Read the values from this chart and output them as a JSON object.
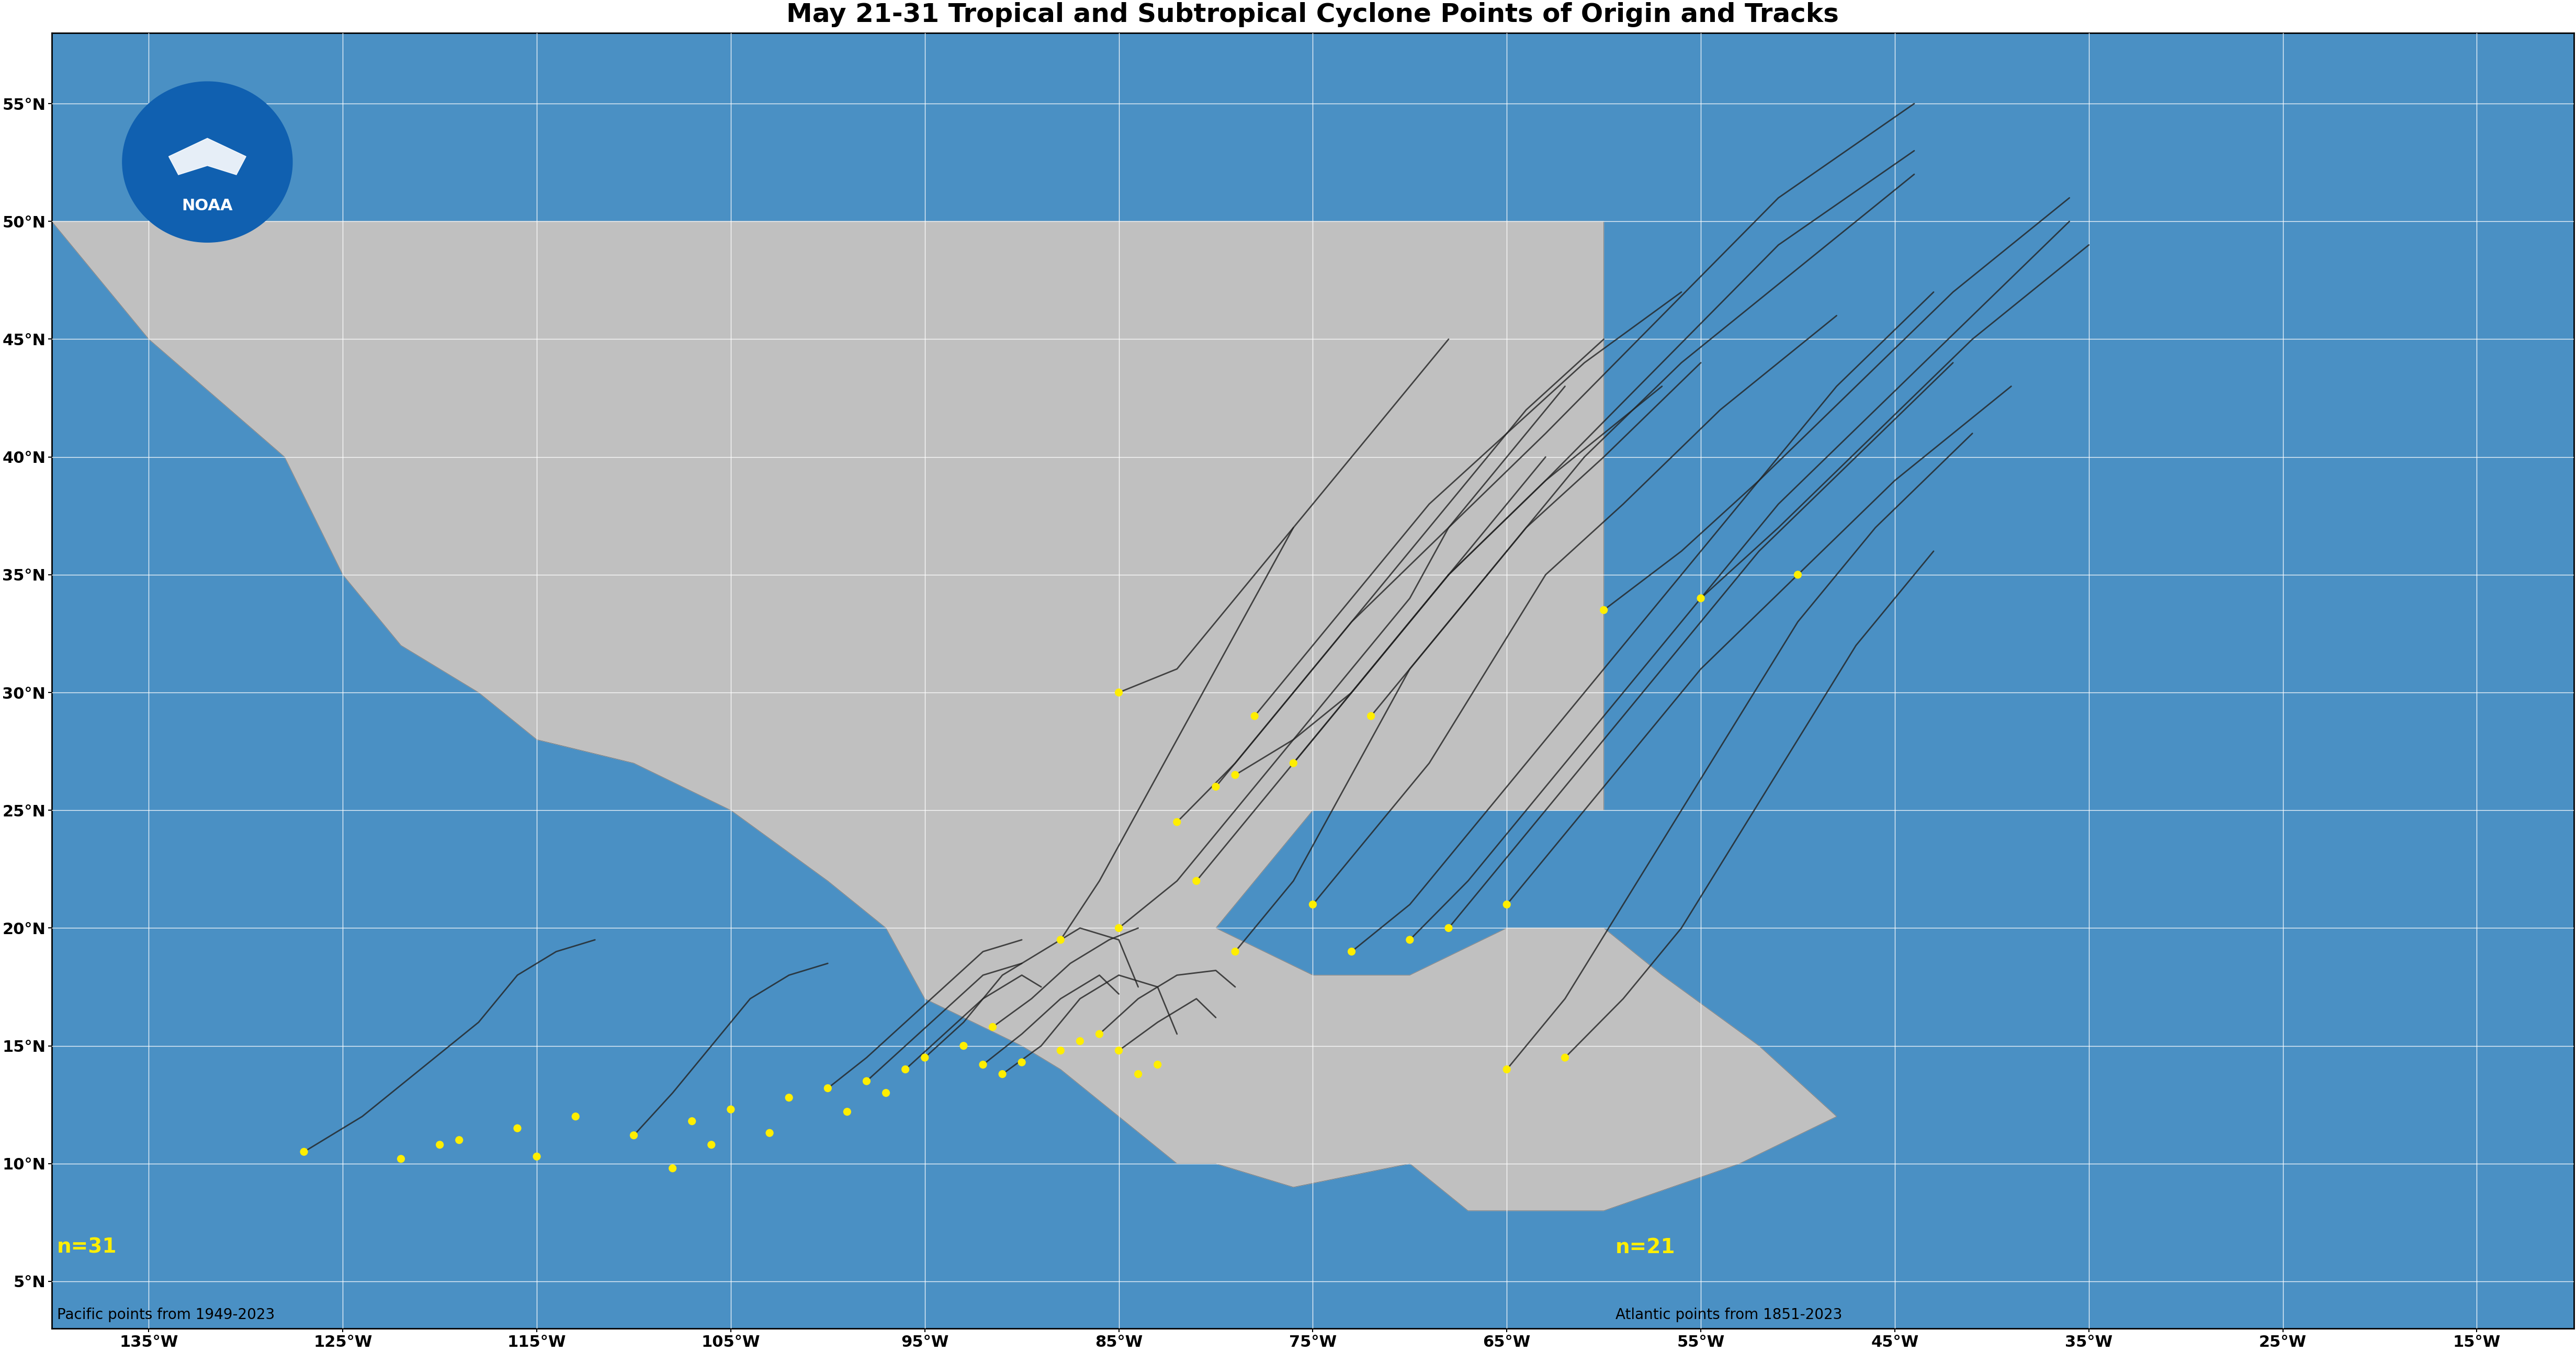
{
  "title": "May 21-31 Tropical and Subtropical Cyclone Points of Origin and Tracks",
  "title_fontsize": 36,
  "xlim": [
    -140,
    -10
  ],
  "ylim": [
    3,
    58
  ],
  "ocean_color": "#4a90c4",
  "land_color": "#c0c0c0",
  "border_color": "#666666",
  "dot_color": "#FFEE00",
  "dot_size": 120,
  "track_color": "#222222",
  "track_linewidth": 2.0,
  "label_pacific": "n=31",
  "label_atlantic": "n=21",
  "label_pacific_sub": "Pacific points from 1949-2023",
  "label_atlantic_sub": "Atlantic points from 1851-2023",
  "label_fontsize": 28,
  "label_color": "#FFEE00",
  "sublabel_fontsize": 20,
  "sublabel_color": "black",
  "xticks": [
    -135,
    -125,
    -115,
    -105,
    -95,
    -85,
    -75,
    -65,
    -55,
    -45,
    -35,
    -25,
    -15
  ],
  "yticks": [
    5,
    10,
    15,
    20,
    25,
    30,
    35,
    40,
    45,
    50,
    55
  ],
  "grid_color": "white",
  "grid_linewidth": 1.0,
  "pacific_origins": [
    [
      -127,
      10.5
    ],
    [
      -122,
      10.2
    ],
    [
      -119,
      11.0
    ],
    [
      -116,
      11.5
    ],
    [
      -113,
      12.0
    ],
    [
      -110,
      11.2
    ],
    [
      -107,
      11.8
    ],
    [
      -105,
      12.3
    ],
    [
      -102,
      12.8
    ],
    [
      -100,
      13.2
    ],
    [
      -98,
      13.5
    ],
    [
      -96,
      14.0
    ],
    [
      -95,
      14.5
    ],
    [
      -93,
      15.0
    ],
    [
      -92,
      14.2
    ],
    [
      -91,
      13.8
    ],
    [
      -90,
      14.3
    ],
    [
      -88,
      14.8
    ],
    [
      -87,
      15.2
    ],
    [
      -86,
      15.5
    ],
    [
      -85,
      14.8
    ],
    [
      -84,
      13.8
    ],
    [
      -83,
      14.2
    ],
    [
      -108,
      9.8
    ],
    [
      -106,
      10.8
    ],
    [
      -103,
      11.3
    ],
    [
      -99,
      12.2
    ],
    [
      -97,
      13.0
    ],
    [
      -120,
      10.8
    ],
    [
      -115,
      10.3
    ],
    [
      -91.5,
      15.8
    ]
  ],
  "atlantic_origins": [
    [
      -80,
      26.0
    ],
    [
      -76,
      27.0
    ],
    [
      -81,
      22.0
    ],
    [
      -75,
      21.0
    ],
    [
      -79,
      19.0
    ],
    [
      -85,
      20.0
    ],
    [
      -88,
      19.5
    ],
    [
      -73,
      19.0
    ],
    [
      -70,
      19.5
    ],
    [
      -65,
      14.0
    ],
    [
      -62,
      14.5
    ],
    [
      -68,
      20.0
    ],
    [
      -72,
      29.0
    ],
    [
      -82,
      24.5
    ],
    [
      -78,
      29.0
    ],
    [
      -60,
      33.5
    ],
    [
      -55,
      34.0
    ],
    [
      -50,
      35.0
    ],
    [
      -85,
      30.0
    ],
    [
      -79,
      26.5
    ],
    [
      -65,
      21.0
    ]
  ],
  "tracks": [
    [
      [
        -80,
        26
      ],
      [
        -77,
        29
      ],
      [
        -73,
        33
      ],
      [
        -68,
        37
      ],
      [
        -63,
        41
      ],
      [
        -57,
        46
      ],
      [
        -51,
        51
      ],
      [
        -44,
        55
      ]
    ],
    [
      [
        -76,
        27
      ],
      [
        -72,
        31
      ],
      [
        -68,
        35
      ],
      [
        -63,
        39
      ],
      [
        -57,
        44
      ],
      [
        -51,
        49
      ],
      [
        -44,
        53
      ]
    ],
    [
      [
        -81,
        22
      ],
      [
        -78,
        25
      ],
      [
        -75,
        28
      ],
      [
        -72,
        31
      ],
      [
        -68,
        35
      ],
      [
        -63,
        39
      ],
      [
        -57,
        43
      ]
    ],
    [
      [
        -75,
        21
      ],
      [
        -72,
        24
      ],
      [
        -69,
        27
      ],
      [
        -66,
        31
      ],
      [
        -63,
        35
      ],
      [
        -59,
        38
      ],
      [
        -54,
        42
      ],
      [
        -48,
        46
      ]
    ],
    [
      [
        -79,
        19
      ],
      [
        -76,
        22
      ],
      [
        -74,
        25
      ],
      [
        -72,
        28
      ],
      [
        -70,
        31
      ],
      [
        -67,
        34
      ],
      [
        -64,
        37
      ],
      [
        -60,
        40
      ],
      [
        -55,
        44
      ]
    ],
    [
      [
        -85,
        20
      ],
      [
        -82,
        22
      ],
      [
        -79,
        25
      ],
      [
        -76,
        28
      ],
      [
        -73,
        31
      ],
      [
        -70,
        34
      ],
      [
        -68,
        37
      ],
      [
        -65,
        40
      ],
      [
        -62,
        43
      ]
    ],
    [
      [
        -88,
        19.5
      ],
      [
        -86,
        22
      ],
      [
        -84,
        25
      ],
      [
        -82,
        28
      ],
      [
        -80,
        31
      ],
      [
        -78,
        34
      ],
      [
        -76,
        37
      ]
    ],
    [
      [
        -73,
        19
      ],
      [
        -70,
        21
      ],
      [
        -67,
        24
      ],
      [
        -64,
        27
      ],
      [
        -61,
        30
      ],
      [
        -58,
        33
      ],
      [
        -55,
        36
      ],
      [
        -52,
        39
      ],
      [
        -48,
        43
      ],
      [
        -43,
        47
      ]
    ],
    [
      [
        -70,
        19.5
      ],
      [
        -67,
        22
      ],
      [
        -64,
        25
      ],
      [
        -61,
        28
      ],
      [
        -58,
        31
      ],
      [
        -55,
        34
      ],
      [
        -51,
        38
      ],
      [
        -46,
        42
      ],
      [
        -41,
        46
      ],
      [
        -36,
        50
      ]
    ],
    [
      [
        -65,
        14
      ],
      [
        -62,
        17
      ],
      [
        -59,
        21
      ],
      [
        -56,
        25
      ],
      [
        -53,
        29
      ],
      [
        -50,
        33
      ],
      [
        -46,
        37
      ],
      [
        -41,
        41
      ]
    ],
    [
      [
        -62,
        14.5
      ],
      [
        -59,
        17
      ],
      [
        -56,
        20
      ],
      [
        -53,
        24
      ],
      [
        -50,
        28
      ],
      [
        -47,
        32
      ],
      [
        -43,
        36
      ]
    ],
    [
      [
        -68,
        20
      ],
      [
        -65,
        23
      ],
      [
        -62,
        26
      ],
      [
        -59,
        29
      ],
      [
        -56,
        32
      ],
      [
        -52,
        36
      ],
      [
        -47,
        40
      ],
      [
        -42,
        44
      ]
    ],
    [
      [
        -72,
        29
      ],
      [
        -69,
        32
      ],
      [
        -65,
        36
      ],
      [
        -61,
        40
      ],
      [
        -56,
        44
      ],
      [
        -50,
        48
      ],
      [
        -44,
        52
      ]
    ],
    [
      [
        -82,
        24.5
      ],
      [
        -79,
        27
      ],
      [
        -76,
        30
      ],
      [
        -73,
        33
      ],
      [
        -70,
        36
      ],
      [
        -67,
        39
      ],
      [
        -64,
        42
      ],
      [
        -60,
        45
      ]
    ],
    [
      [
        -78,
        29
      ],
      [
        -75,
        32
      ],
      [
        -72,
        35
      ],
      [
        -69,
        38
      ],
      [
        -65,
        41
      ],
      [
        -61,
        44
      ],
      [
        -56,
        47
      ]
    ],
    [
      [
        -60,
        33.5
      ],
      [
        -56,
        36
      ],
      [
        -52,
        39
      ],
      [
        -47,
        43
      ],
      [
        -42,
        47
      ],
      [
        -36,
        51
      ]
    ],
    [
      [
        -55,
        34
      ],
      [
        -51,
        37
      ],
      [
        -46,
        41
      ],
      [
        -41,
        45
      ],
      [
        -35,
        49
      ]
    ],
    [
      [
        -85,
        30
      ],
      [
        -82,
        31
      ],
      [
        -80,
        33
      ],
      [
        -78,
        35
      ],
      [
        -76,
        37
      ],
      [
        -74,
        39
      ],
      [
        -72,
        41
      ],
      [
        -70,
        43
      ],
      [
        -68,
        45
      ]
    ],
    [
      [
        -79,
        26.5
      ],
      [
        -76,
        28
      ],
      [
        -73,
        30
      ],
      [
        -71,
        32
      ],
      [
        -69,
        34
      ],
      [
        -67,
        36
      ],
      [
        -65,
        38
      ],
      [
        -63,
        40
      ]
    ],
    [
      [
        -65,
        21
      ],
      [
        -62,
        24
      ],
      [
        -59,
        27
      ],
      [
        -55,
        31
      ],
      [
        -50,
        35
      ],
      [
        -45,
        39
      ],
      [
        -39,
        43
      ]
    ],
    [
      [
        -127,
        10.5
      ],
      [
        -124,
        12
      ],
      [
        -121,
        14
      ],
      [
        -118,
        16
      ],
      [
        -116,
        18
      ],
      [
        -114,
        19
      ],
      [
        -112,
        19.5
      ]
    ],
    [
      [
        -110,
        11.2
      ],
      [
        -108,
        13
      ],
      [
        -106,
        15
      ],
      [
        -104,
        17
      ],
      [
        -102,
        18
      ],
      [
        -100,
        18.5
      ]
    ],
    [
      [
        -95,
        14.5
      ],
      [
        -93,
        16
      ],
      [
        -91,
        18
      ],
      [
        -89,
        19
      ],
      [
        -87,
        20
      ],
      [
        -85,
        19.5
      ],
      [
        -84,
        17.5
      ]
    ],
    [
      [
        -91,
        13.8
      ],
      [
        -89,
        15
      ],
      [
        -87,
        17
      ],
      [
        -85,
        18
      ],
      [
        -83,
        17.5
      ],
      [
        -82,
        15.5
      ]
    ],
    [
      [
        -92,
        14.2
      ],
      [
        -90,
        15.5
      ],
      [
        -88,
        17
      ],
      [
        -86,
        18
      ],
      [
        -85,
        17.2
      ]
    ],
    [
      [
        -86,
        15.5
      ],
      [
        -84,
        17
      ],
      [
        -82,
        18
      ],
      [
        -80,
        18.2
      ],
      [
        -79,
        17.5
      ]
    ],
    [
      [
        -85,
        14.8
      ],
      [
        -83,
        16
      ],
      [
        -81,
        17
      ],
      [
        -80,
        16.2
      ]
    ],
    [
      [
        -96,
        14
      ],
      [
        -94,
        15.5
      ],
      [
        -92,
        17
      ],
      [
        -90,
        18
      ],
      [
        -89,
        17.5
      ]
    ],
    [
      [
        -98,
        13.5
      ],
      [
        -96,
        15
      ],
      [
        -94,
        16.5
      ],
      [
        -92,
        18
      ],
      [
        -90,
        18.5
      ]
    ],
    [
      [
        -100,
        13.2
      ],
      [
        -98,
        14.5
      ],
      [
        -96,
        16
      ],
      [
        -94,
        17.5
      ],
      [
        -92,
        19
      ],
      [
        -90,
        19.5
      ]
    ],
    [
      [
        -91.5,
        15.8
      ],
      [
        -89.5,
        17
      ],
      [
        -87.5,
        18.5
      ],
      [
        -85.5,
        19.5
      ],
      [
        -84,
        20
      ]
    ]
  ]
}
